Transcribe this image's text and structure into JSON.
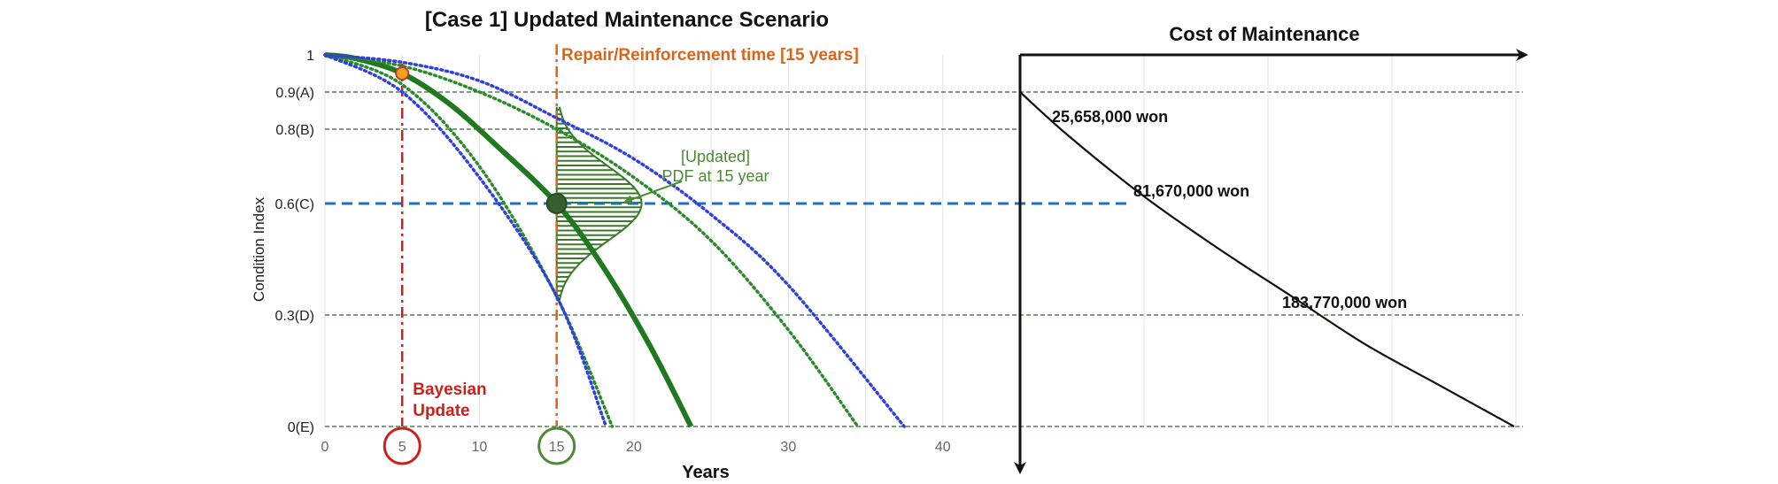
{
  "chart_data": {
    "type": "line",
    "title": "[Case 1] Updated Maintenance Scenario",
    "xlabel": "Years",
    "ylabel": "Condition Index",
    "xlim": [
      0,
      45
    ],
    "ylim": [
      0,
      1
    ],
    "x_ticks": [
      "0",
      "5",
      "10",
      "15",
      "20",
      "30",
      "40"
    ],
    "x_tick_values": [
      0,
      5,
      10,
      15,
      20,
      30,
      40
    ],
    "y_ticks": [
      {
        "label": "1",
        "value": 1.0
      },
      {
        "label": "0.9(A)",
        "value": 0.9
      },
      {
        "label": "0.8(B)",
        "value": 0.8
      },
      {
        "label": "0.6(C)",
        "value": 0.6
      },
      {
        "label": "0.3(D)",
        "value": 0.3
      },
      {
        "label": "0(E)",
        "value": 0.0
      }
    ],
    "series": [
      {
        "style": "solid",
        "color": "#1f7a1f",
        "x": [
          0,
          2,
          5,
          8,
          11,
          15,
          18,
          21,
          23.7
        ],
        "y": [
          1.0,
          0.99,
          0.95,
          0.87,
          0.76,
          0.6,
          0.43,
          0.22,
          0.0
        ]
      },
      {
        "style": "dotted",
        "color": "#2b8a2b",
        "x": [
          0,
          5,
          10,
          15,
          18.6
        ],
        "y": [
          1.0,
          0.92,
          0.7,
          0.35,
          0.0
        ]
      },
      {
        "style": "dotted",
        "color": "#2b8a2b",
        "x": [
          0,
          5,
          10,
          15,
          20,
          25,
          30,
          34.5
        ],
        "y": [
          1.0,
          0.97,
          0.9,
          0.8,
          0.67,
          0.5,
          0.26,
          0.0
        ]
      },
      {
        "style": "dotted",
        "color": "#2f3fe0",
        "x": [
          0,
          5,
          10,
          15,
          18.2
        ],
        "y": [
          1.0,
          0.9,
          0.67,
          0.35,
          0.0
        ]
      },
      {
        "style": "dotted",
        "color": "#2f3fe0",
        "x": [
          0,
          5,
          10,
          15,
          20,
          25,
          30,
          37.5
        ],
        "y": [
          1.0,
          0.98,
          0.93,
          0.83,
          0.72,
          0.57,
          0.38,
          0.0
        ]
      }
    ],
    "points": [
      {
        "x": 5,
        "y": 0.95,
        "color": "#f2a21d"
      },
      {
        "x": 15,
        "y": 0.6,
        "color": "#365f2f"
      }
    ],
    "horizontal_lines": [
      {
        "y": 0.9,
        "style": "dashed",
        "color": "#2c6b2c"
      },
      {
        "y": 0.8,
        "style": "dashed",
        "color": "#2c6b2c"
      },
      {
        "y": 0.6,
        "style": "dashed",
        "color": "#1f6fc0"
      },
      {
        "y": 0.3,
        "style": "dashed",
        "color": "#2c6b2c"
      },
      {
        "y": 0.0,
        "style": "dashed",
        "color": "#2c6b2c"
      }
    ],
    "vertical_lines": [
      {
        "x": 5,
        "color": "#c8221f",
        "label": "Bayesian\nUpdate"
      },
      {
        "x": 15,
        "color": "#d9641a",
        "label": "Repair/Reinforcement time [15 years]"
      }
    ],
    "pdf_annotation": "[Updated]\nPDF at 15 year",
    "pdf": {
      "x": 15,
      "mean": 0.6,
      "sd": 0.1,
      "peak_years": 5.5,
      "color": "#3a7a2a"
    },
    "circled_ticks": [
      {
        "x": 5,
        "color": "#c8221f"
      },
      {
        "x": 15,
        "color": "#4c8a35"
      }
    ],
    "cost_panel": {
      "title": "Cost of Maintenance",
      "curve": {
        "t": [
          0.0,
          0.1,
          0.25,
          0.4,
          0.55,
          0.7,
          0.85,
          1.0
        ],
        "y": [
          0.9,
          0.78,
          0.62,
          0.48,
          0.35,
          0.22,
          0.11,
          0.0
        ]
      },
      "labels": [
        {
          "text": "25,658,000 won",
          "y": 0.8
        },
        {
          "text": "81,670,000 won",
          "y": 0.6
        },
        {
          "text": "183,770,000 won",
          "y": 0.3
        }
      ]
    }
  }
}
